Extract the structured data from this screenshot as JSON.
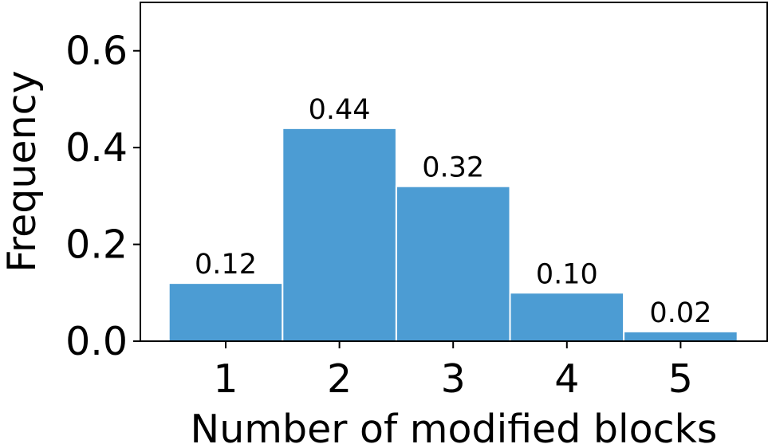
{
  "chart_data": {
    "type": "bar",
    "xlabel": "Number of modified blocks",
    "ylabel": "Frequency",
    "categories": [
      "1",
      "2",
      "3",
      "4",
      "5"
    ],
    "values": [
      0.12,
      0.44,
      0.32,
      0.1,
      0.02
    ],
    "value_labels": [
      "0.12",
      "0.44",
      "0.32",
      "0.10",
      "0.02"
    ],
    "color": "#4c9cd3",
    "ylim": [
      0,
      0.7
    ],
    "yticks": [
      {
        "value": 0,
        "label": "0.0"
      },
      0.2,
      0.4,
      0.6
    ]
  }
}
